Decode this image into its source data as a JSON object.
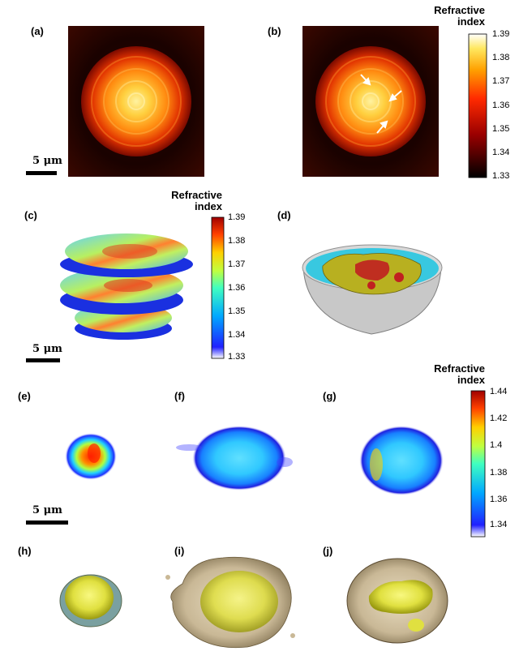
{
  "panels": {
    "a": "(a)",
    "b": "(b)",
    "c": "(c)",
    "d": "(d)",
    "e": "(e)",
    "f": "(f)",
    "g": "(g)",
    "h": "(h)",
    "i": "(i)",
    "j": "(j)"
  },
  "colorbar_top": {
    "title_line1": "Refractive",
    "title_line2": "index",
    "ticks": [
      "1.39",
      "1.38",
      "1.37",
      "1.36",
      "1.35",
      "1.34",
      "1.33"
    ]
  },
  "colorbar_mid": {
    "title_line1": "Refractive",
    "title_line2": "index",
    "ticks": [
      "1.39",
      "1.38",
      "1.37",
      "1.36",
      "1.35",
      "1.34",
      "1.33"
    ]
  },
  "colorbar_bottom": {
    "title_line1": "Refractive",
    "title_line2": "index",
    "ticks": [
      "1.44",
      "1.42",
      "1.4",
      "1.38",
      "1.36",
      "1.34"
    ]
  },
  "scale_bars": {
    "a": "5 μm",
    "c": "5 μm",
    "e": "5 μm"
  }
}
